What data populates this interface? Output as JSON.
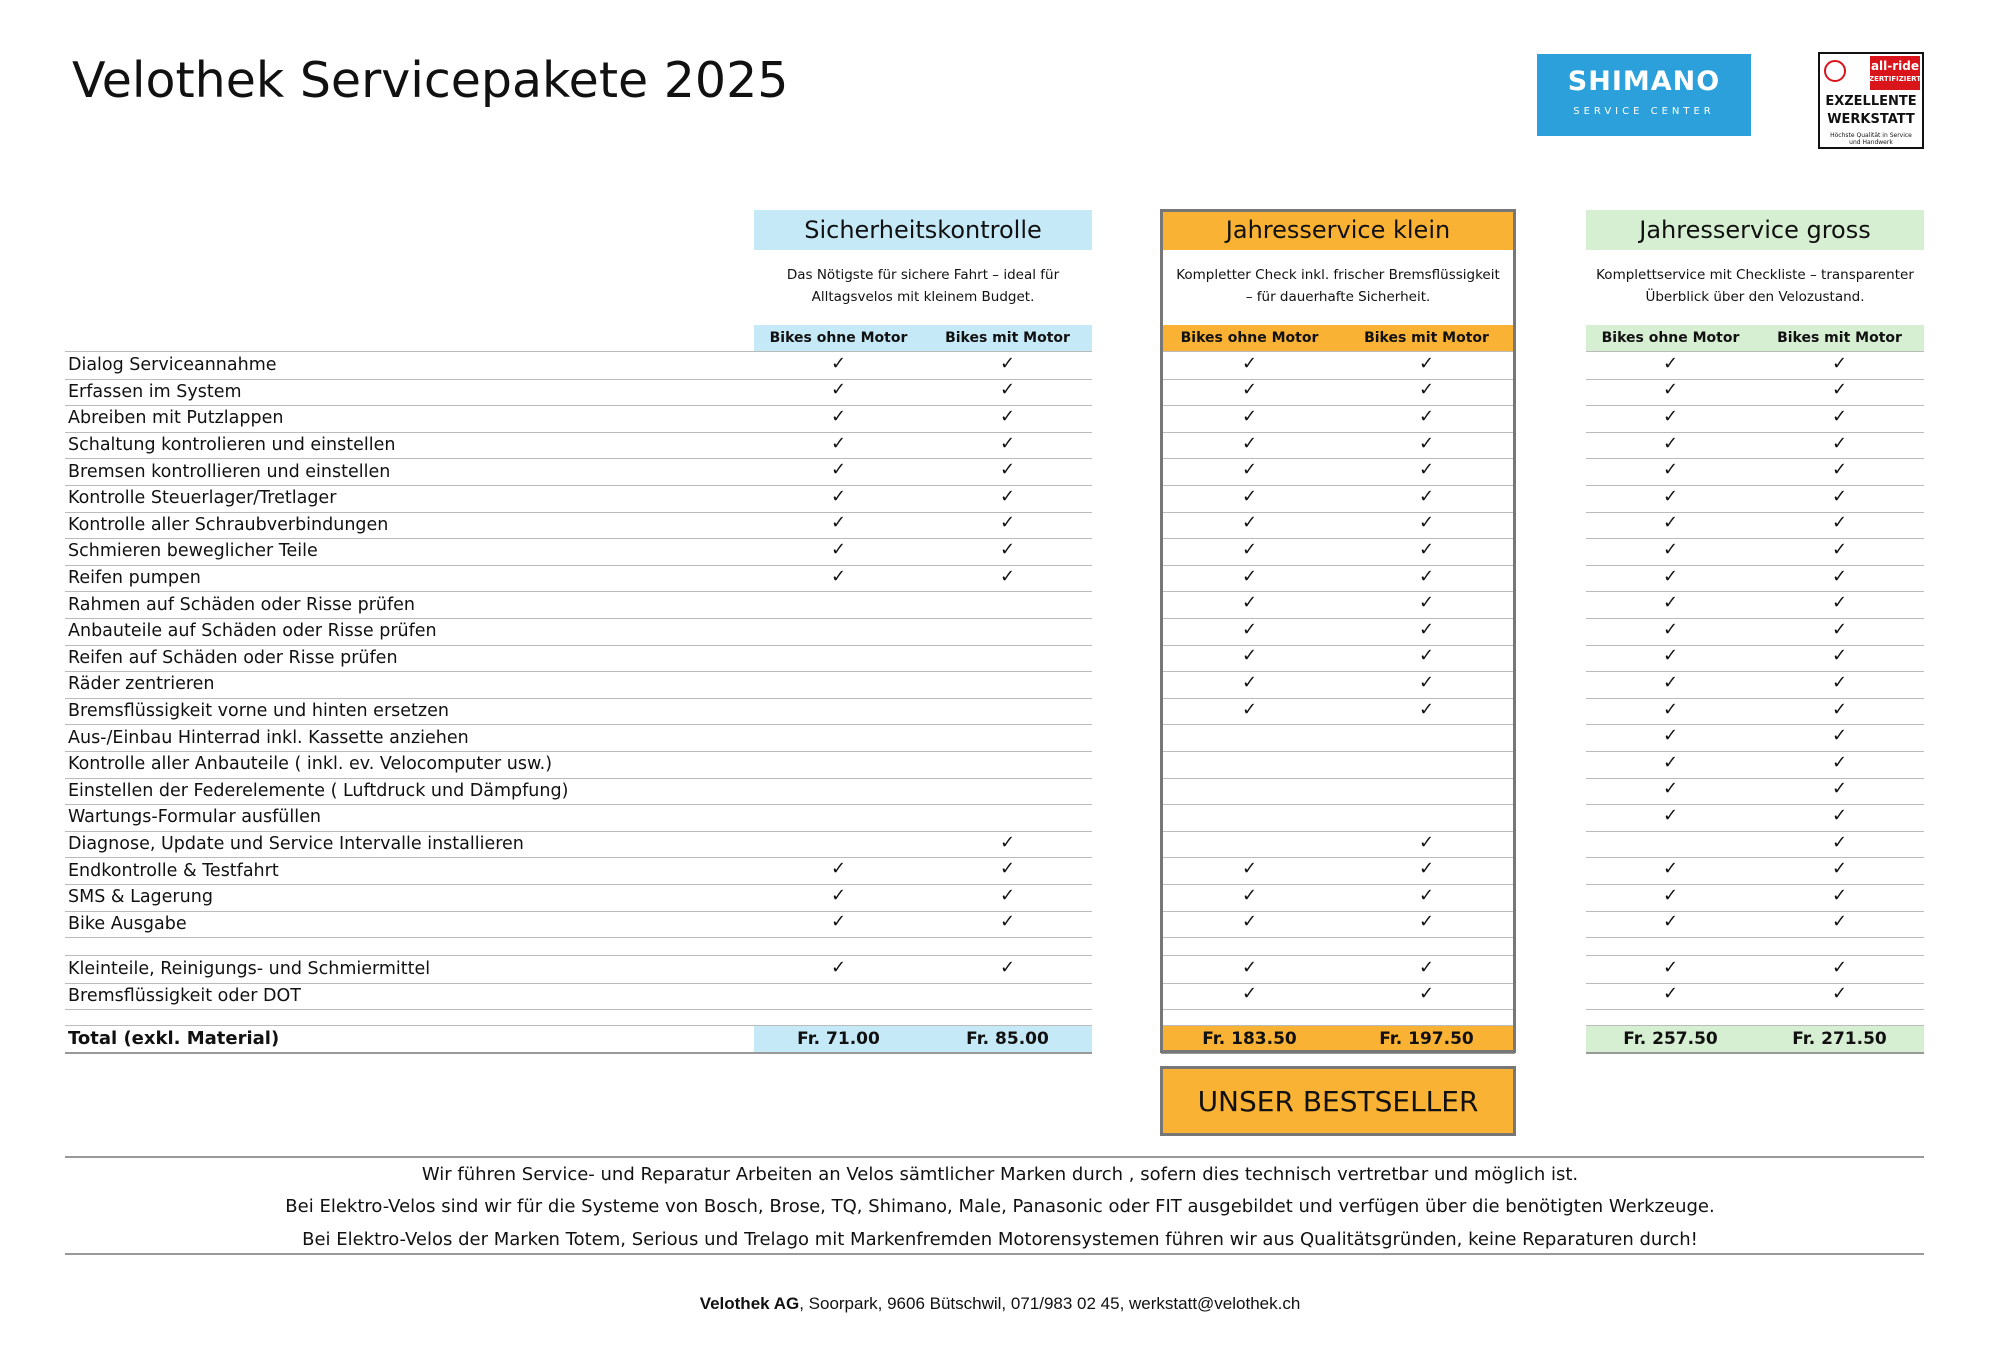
{
  "header": {
    "title": "Velothek Servicepakete 2025"
  },
  "logos": {
    "shimano": "SHIMANO",
    "shimano_sub": "SERVICE CENTER",
    "allride": "all-ride",
    "allride_sub": "ZERTIFIZIERT",
    "award_line1": "EXZELLENTE",
    "award_line2": "WERKSTATT",
    "award_small": "Höchste Qualität in Service und Handwerk"
  },
  "packages": [
    {
      "name": "Sicherheitskontrolle",
      "description": "Das Nötigste für sichere Fahrt – ideal für Alltagsvelos mit kleinem Budget.",
      "columns": [
        "Bikes ohne Motor",
        "Bikes mit Motor"
      ],
      "color": "#c6e9f8"
    },
    {
      "name": "Jahresservice klein",
      "description": "Kompletter Check inkl. frischer Bremsflüssigkeit – für dauerhafte Sicherheit.",
      "columns": [
        "Bikes ohne Motor",
        "Bikes mit Motor"
      ],
      "color": "#f9b233"
    },
    {
      "name": "Jahresservice gross",
      "description": "Komplettservice mit Checkliste – transparenter Überblick über den Velozustand.",
      "columns": [
        "Bikes ohne Motor",
        "Bikes mit Motor"
      ],
      "color": "#d6eed2"
    }
  ],
  "rows": [
    {
      "label": "Dialog Serviceannahme",
      "cells": [
        "✓",
        "✓",
        "✓",
        "✓",
        "✓",
        "✓"
      ]
    },
    {
      "label": "Erfassen im System",
      "cells": [
        "✓",
        "✓",
        "✓",
        "✓",
        "✓",
        "✓"
      ]
    },
    {
      "label": "Abreiben mit Putzlappen",
      "cells": [
        "✓",
        "✓",
        "✓",
        "✓",
        "✓",
        "✓"
      ]
    },
    {
      "label": "Schaltung kontrolieren und einstellen",
      "cells": [
        "✓",
        "✓",
        "✓",
        "✓",
        "✓",
        "✓"
      ]
    },
    {
      "label": "Bremsen kontrollieren und einstellen",
      "cells": [
        "✓",
        "✓",
        "✓",
        "✓",
        "✓",
        "✓"
      ]
    },
    {
      "label": "Kontrolle Steuerlager/Tretlager",
      "cells": [
        "✓",
        "✓",
        "✓",
        "✓",
        "✓",
        "✓"
      ]
    },
    {
      "label": "Kontrolle aller Schraubverbindungen",
      "cells": [
        "✓",
        "✓",
        "✓",
        "✓",
        "✓",
        "✓"
      ]
    },
    {
      "label": "Schmieren beweglicher Teile",
      "cells": [
        "✓",
        "✓",
        "✓",
        "✓",
        "✓",
        "✓"
      ]
    },
    {
      "label": "Reifen pumpen",
      "cells": [
        "✓",
        "✓",
        "✓",
        "✓",
        "✓",
        "✓"
      ]
    },
    {
      "label": "Rahmen auf Schäden oder Risse prüfen",
      "cells": [
        null,
        null,
        "✓",
        "✓",
        "✓",
        "✓"
      ]
    },
    {
      "label": "Anbauteile auf Schäden oder Risse prüfen",
      "cells": [
        null,
        null,
        "✓",
        "✓",
        "✓",
        "✓"
      ]
    },
    {
      "label": "Reifen auf Schäden oder Risse prüfen",
      "cells": [
        null,
        null,
        "✓",
        "✓",
        "✓",
        "✓"
      ]
    },
    {
      "label": "Räder zentrieren",
      "cells": [
        null,
        null,
        "✓",
        "✓",
        "✓",
        "✓"
      ]
    },
    {
      "label": "Bremsflüssigkeit vorne und hinten ersetzen",
      "cells": [
        null,
        null,
        "✓",
        "✓",
        "✓",
        "✓"
      ]
    },
    {
      "label": "Aus-/Einbau Hinterrad inkl. Kassette anziehen",
      "cells": [
        null,
        null,
        null,
        null,
        "✓",
        "✓"
      ]
    },
    {
      "label": "Kontrolle aller Anbauteile ( inkl. ev. Velocomputer usw.)",
      "cells": [
        null,
        null,
        null,
        null,
        "✓",
        "✓"
      ]
    },
    {
      "label": "Einstellen der Federelemente ( Luftdruck und Dämpfung)",
      "cells": [
        null,
        null,
        null,
        null,
        "✓",
        "✓"
      ]
    },
    {
      "label": "Wartungs-Formular ausfüllen",
      "cells": [
        null,
        null,
        null,
        null,
        "✓",
        "✓"
      ]
    },
    {
      "label": "Diagnose, Update und Service Intervalle installieren",
      "cells": [
        null,
        "✓",
        null,
        "✓",
        null,
        "✓"
      ]
    },
    {
      "label": "Endkontrolle & Testfahrt",
      "cells": [
        "✓",
        "✓",
        "✓",
        "✓",
        "✓",
        "✓"
      ]
    },
    {
      "label": "SMS & Lagerung",
      "cells": [
        "✓",
        "✓",
        "✓",
        "✓",
        "✓",
        "✓"
      ]
    },
    {
      "label": "Bike Ausgabe",
      "cells": [
        "✓",
        "✓",
        "✓",
        "✓",
        "✓",
        "✓"
      ]
    }
  ],
  "material_rows": [
    {
      "label": "Kleinteile, Reinigungs- und Schmiermittel",
      "cells": [
        "✓",
        "✓",
        "✓",
        "✓",
        "✓",
        "✓"
      ]
    },
    {
      "label": "Bremsflüssigkeit oder DOT",
      "cells": [
        null,
        null,
        "✓",
        "✓",
        "✓",
        "✓"
      ]
    }
  ],
  "total": {
    "label": "Total (exkl. Material)",
    "prices": [
      "Fr. 71.00",
      "Fr. 85.00",
      "Fr. 183.50",
      "Fr. 197.50",
      "Fr. 257.50",
      "Fr. 271.50"
    ]
  },
  "bestseller": "UNSER BESTSELLER",
  "notes": [
    "Wir führen Service- und Reparatur Arbeiten an Velos sämtlicher Marken durch , sofern dies technisch vertretbar und möglich ist.",
    "Bei Elektro-Velos sind wir für die Systeme von Bosch, Brose, TQ, Shimano, Male, Panasonic oder FIT ausgebildet und verfügen über die benötigten Werkzeuge.",
    "Bei Elektro-Velos der Marken Totem, Serious und Trelago mit Markenfremden Motorensystemen führen wir aus Qualitätsgründen, keine Reparaturen durch!"
  ],
  "footer": {
    "company": "Velothek AG",
    "address": ", Soorpark, 9606 Bütschwil, 071/983 02 45, werkstatt@velothek.ch"
  }
}
